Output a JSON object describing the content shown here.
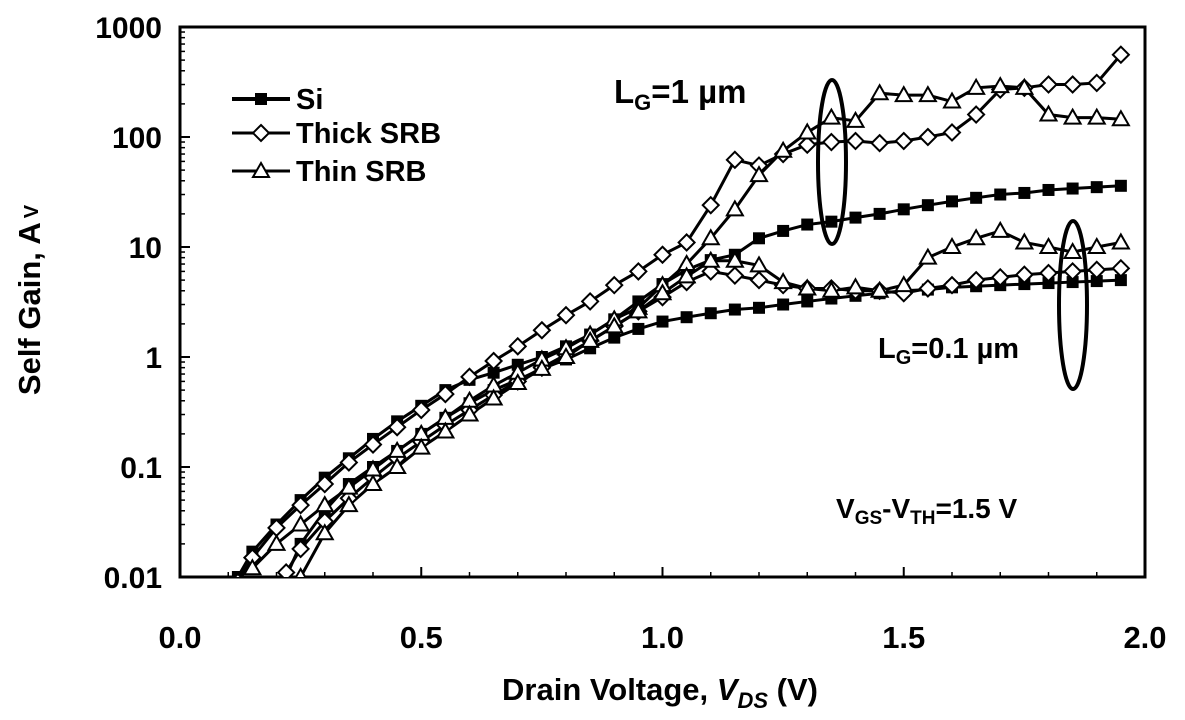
{
  "chart_data": {
    "type": "line",
    "xlabel": "Drain Voltage, ",
    "xlabel_var": "V",
    "xlabel_sub": "DS",
    "xlabel_unit": " (V)",
    "ylabel": "Self Gain, A",
    "ylabel_sub": "V",
    "xlim": [
      0.0,
      2.0
    ],
    "ylim": [
      0.01,
      1000
    ],
    "y_scale": "log",
    "x_ticks": [
      "0.0",
      "0.5",
      "1.0",
      "1.5",
      "2.0"
    ],
    "y_ticks": [
      "0.01",
      "0.1",
      "1",
      "10",
      "100",
      "1000"
    ],
    "grid": false,
    "legend_position": "top-left",
    "annotations": [
      {
        "text": "L",
        "sub": "G",
        "rest": "=1 µm"
      },
      {
        "text": "L",
        "sub": "G",
        "rest": "=0.1 µm"
      },
      {
        "text": "V",
        "sub": "GS",
        "mid": "-V",
        "sub2": "TH",
        "rest": "=1.5 V"
      }
    ],
    "series": [
      {
        "name": "Si",
        "marker": "filled-square",
        "curves": [
          {
            "x": [
              0.12,
              0.15,
              0.2,
              0.25,
              0.3,
              0.35,
              0.4,
              0.45,
              0.5,
              0.55,
              0.6,
              0.65,
              0.7,
              0.75,
              0.8,
              0.85,
              0.9,
              0.95,
              1.0,
              1.05,
              1.1,
              1.15,
              1.2,
              1.25,
              1.3,
              1.35,
              1.4,
              1.45,
              1.5,
              1.55,
              1.6,
              1.65,
              1.7,
              1.75,
              1.8,
              1.85,
              1.9,
              1.95
            ],
            "y": [
              0.01,
              0.017,
              0.03,
              0.05,
              0.08,
              0.12,
              0.18,
              0.26,
              0.36,
              0.5,
              0.62,
              0.72,
              0.85,
              1.0,
              1.25,
              1.6,
              2.2,
              3.2,
              4.6,
              6.2,
              7.6,
              8.5,
              12,
              14,
              16,
              17,
              18.5,
              20,
              22,
              24,
              26,
              28,
              30,
              31,
              33,
              34,
              35,
              36
            ]
          },
          {
            "x": [
              0.22,
              0.25,
              0.3,
              0.35,
              0.4,
              0.45,
              0.5,
              0.55,
              0.6,
              0.65,
              0.7,
              0.75,
              0.8,
              0.85,
              0.9,
              0.95,
              1.0,
              1.05,
              1.1,
              1.15,
              1.2,
              1.25,
              1.3,
              1.35,
              1.4,
              1.45,
              1.5,
              1.55,
              1.6,
              1.65,
              1.7,
              1.75,
              1.8,
              1.85,
              1.9,
              1.95
            ],
            "y": [
              0.01,
              0.02,
              0.04,
              0.07,
              0.1,
              0.14,
              0.2,
              0.28,
              0.38,
              0.5,
              0.62,
              0.78,
              0.95,
              1.2,
              1.5,
              1.8,
              2.1,
              2.3,
              2.5,
              2.7,
              2.8,
              3.0,
              3.2,
              3.4,
              3.6,
              3.8,
              4.0,
              4.1,
              4.3,
              4.4,
              4.5,
              4.6,
              4.7,
              4.8,
              4.9,
              5.0
            ]
          }
        ]
      },
      {
        "name": "Thick SRB",
        "marker": "open-diamond",
        "curves": [
          {
            "x": [
              0.12,
              0.15,
              0.2,
              0.25,
              0.3,
              0.35,
              0.4,
              0.45,
              0.5,
              0.55,
              0.6,
              0.65,
              0.7,
              0.75,
              0.8,
              0.85,
              0.9,
              0.95,
              1.0,
              1.05,
              1.1,
              1.15,
              1.2,
              1.25,
              1.3,
              1.35,
              1.4,
              1.45,
              1.5,
              1.55,
              1.6,
              1.65,
              1.7,
              1.75,
              1.8,
              1.85,
              1.9,
              1.95
            ],
            "y": [
              0.009,
              0.015,
              0.028,
              0.045,
              0.07,
              0.11,
              0.16,
              0.23,
              0.33,
              0.46,
              0.66,
              0.92,
              1.25,
              1.75,
              2.4,
              3.2,
              4.5,
              6.0,
              8.5,
              11,
              24,
              62,
              55,
              70,
              85,
              90,
              92,
              88,
              92,
              100,
              110,
              160,
              270,
              280,
              300,
              300,
              310,
              560
            ]
          },
          {
            "x": [
              0.22,
              0.25,
              0.3,
              0.35,
              0.4,
              0.45,
              0.5,
              0.55,
              0.6,
              0.65,
              0.7,
              0.75,
              0.8,
              0.85,
              0.9,
              0.95,
              1.0,
              1.05,
              1.1,
              1.15,
              1.2,
              1.25,
              1.3,
              1.35,
              1.4,
              1.45,
              1.5,
              1.55,
              1.6,
              1.65,
              1.7,
              1.75,
              1.8,
              1.85,
              1.9,
              1.95
            ],
            "y": [
              0.011,
              0.018,
              0.032,
              0.052,
              0.08,
              0.12,
              0.17,
              0.24,
              0.33,
              0.45,
              0.6,
              0.8,
              1.05,
              1.4,
              1.9,
              2.6,
              3.5,
              4.8,
              6.0,
              5.5,
              5.0,
              4.5,
              4.2,
              4.2,
              4.0,
              4.0,
              3.8,
              4.2,
              4.5,
              5.0,
              5.3,
              5.6,
              5.8,
              6.0,
              6.2,
              6.4
            ]
          }
        ]
      },
      {
        "name": "Thin SRB",
        "marker": "open-triangle",
        "curves": [
          {
            "x": [
              0.15,
              0.2,
              0.25,
              0.3,
              0.35,
              0.4,
              0.45,
              0.5,
              0.55,
              0.6,
              0.65,
              0.7,
              0.75,
              0.8,
              0.85,
              0.9,
              0.95,
              1.0,
              1.05,
              1.1,
              1.15,
              1.2,
              1.25,
              1.3,
              1.35,
              1.4,
              1.45,
              1.5,
              1.55,
              1.6,
              1.65,
              1.7,
              1.75,
              1.8,
              1.85,
              1.9,
              1.95
            ],
            "y": [
              0.012,
              0.02,
              0.03,
              0.045,
              0.065,
              0.095,
              0.14,
              0.2,
              0.28,
              0.4,
              0.55,
              0.72,
              0.95,
              1.2,
              1.6,
              2.2,
              2.8,
              4.5,
              7.0,
              12,
              22,
              45,
              75,
              110,
              150,
              140,
              250,
              240,
              240,
              210,
              280,
              290,
              280,
              160,
              150,
              150,
              145
            ]
          },
          {
            "x": [
              0.25,
              0.3,
              0.35,
              0.4,
              0.45,
              0.5,
              0.55,
              0.6,
              0.65,
              0.7,
              0.75,
              0.8,
              0.85,
              0.9,
              0.95,
              1.0,
              1.05,
              1.1,
              1.15,
              1.2,
              1.25,
              1.3,
              1.35,
              1.4,
              1.45,
              1.5,
              1.55,
              1.6,
              1.65,
              1.7,
              1.75,
              1.8,
              1.85,
              1.9,
              1.95
            ],
            "y": [
              0.01,
              0.025,
              0.045,
              0.07,
              0.1,
              0.15,
              0.21,
              0.3,
              0.42,
              0.58,
              0.78,
              1.0,
              1.4,
              1.9,
              2.6,
              3.8,
              5.4,
              7.5,
              7.5,
              6.8,
              4.8,
              4.2,
              4.0,
              4.3,
              4.0,
              4.5,
              8.0,
              10,
              12,
              14,
              11,
              10,
              9,
              10,
              11
            ]
          }
        ]
      }
    ],
    "ellipses": [
      "lg-1um",
      "lg-0.1um"
    ]
  }
}
